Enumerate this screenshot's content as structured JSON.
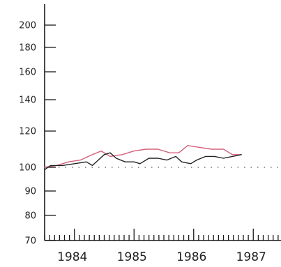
{
  "chart_data": {
    "type": "line",
    "title": "",
    "xlabel": "",
    "ylabel": "",
    "x_start": 1983.5,
    "xlim": [
      1983.5,
      1987.5
    ],
    "year_labels": [
      "1984",
      "1985",
      "1986",
      "1987"
    ],
    "year_positions": [
      1984,
      1985,
      1986,
      1987
    ],
    "y_ticks": [
      70,
      80,
      90,
      100,
      120,
      140,
      160,
      180,
      200
    ],
    "y_tick_labels": [
      "70",
      "80",
      "90",
      "100",
      "120",
      "140",
      "160",
      "180",
      "200"
    ],
    "reference_line": 100,
    "grid": false,
    "series": [
      {
        "color": "#d4607a",
        "x": [
          1983.5,
          1983.7,
          1983.9,
          1984.1,
          1984.3,
          1984.45,
          1984.6,
          1984.8,
          1985.0,
          1985.2,
          1985.4,
          1985.6,
          1985.75,
          1985.9,
          1986.1,
          1986.3,
          1986.5,
          1986.65,
          1986.8
        ],
        "values": [
          100,
          101,
          103,
          104,
          107,
          109,
          106,
          107,
          109,
          110,
          110,
          108,
          108,
          112,
          111,
          110,
          110,
          107,
          107
        ]
      },
      {
        "color": "#222222",
        "x": [
          1983.5,
          1983.6,
          1983.8,
          1984.0,
          1984.2,
          1984.3,
          1984.4,
          1984.5,
          1984.6,
          1984.7,
          1984.85,
          1985.0,
          1985.1,
          1985.25,
          1985.4,
          1985.55,
          1985.7,
          1985.8,
          1985.95,
          1986.05,
          1986.2,
          1986.35,
          1986.5,
          1986.65,
          1986.8
        ],
        "values": [
          99,
          101,
          101,
          102,
          103,
          101,
          104,
          107,
          108,
          105,
          103,
          103,
          102,
          105,
          105,
          104,
          106,
          103,
          102,
          104,
          106,
          106,
          105,
          106,
          107
        ]
      }
    ]
  }
}
